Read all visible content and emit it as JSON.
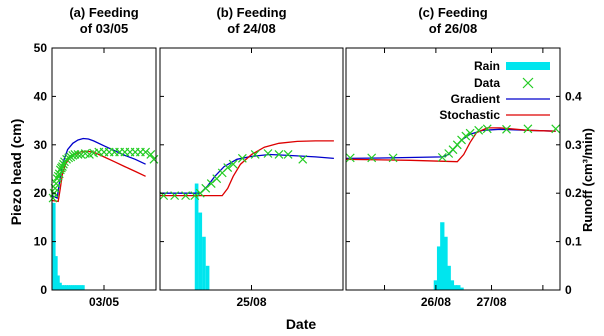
{
  "chart_data": {
    "type": "line",
    "xlabel": "Date",
    "ylabel": "Piezo head (cm)",
    "y2label": "Runoff (cm³/min)",
    "ylim": [
      0,
      50
    ],
    "y2lim": [
      0,
      0.5
    ],
    "yticks": [
      "0",
      "10",
      "20",
      "30",
      "40",
      "50"
    ],
    "y2ticks": [
      "0",
      "0.1",
      "0.2",
      "0.3",
      "0.4"
    ],
    "legend": {
      "placement": "top-right",
      "entries": [
        "Rain",
        "Data",
        "Gradient",
        "Stochastic"
      ]
    },
    "colors": {
      "rain": "#00e5ee",
      "data": "#22cc22",
      "gradient": "#0000cc",
      "stochastic": "#dd0000"
    },
    "panels": [
      {
        "title_line1": "(a) Feeding",
        "title_line2": "of 03/05",
        "xlim": [
          0,
          100
        ],
        "ticks": [
          {
            "x": 50,
            "label": "03/05"
          }
        ],
        "data": [
          [
            1,
            19
          ],
          [
            2,
            20
          ],
          [
            3,
            21
          ],
          [
            4,
            22
          ],
          [
            5,
            23
          ],
          [
            6,
            23.5
          ],
          [
            7,
            24
          ],
          [
            8,
            24.8
          ],
          [
            9,
            25.2
          ],
          [
            10,
            25.5
          ],
          [
            11,
            26
          ],
          [
            12,
            26.5
          ],
          [
            14,
            27
          ],
          [
            16,
            27.3
          ],
          [
            18,
            27.5
          ],
          [
            20,
            27.8
          ],
          [
            22,
            28
          ],
          [
            25,
            28
          ],
          [
            28,
            28
          ],
          [
            32,
            28.2
          ],
          [
            36,
            28
          ],
          [
            40,
            28.3
          ],
          [
            45,
            28.5
          ],
          [
            50,
            28.5
          ],
          [
            55,
            28.5
          ],
          [
            60,
            28.5
          ],
          [
            65,
            28.5
          ],
          [
            70,
            28.5
          ],
          [
            75,
            28.5
          ],
          [
            80,
            28.5
          ],
          [
            85,
            28.5
          ],
          [
            90,
            28.5
          ],
          [
            95,
            28
          ],
          [
            98,
            27
          ]
        ],
        "gradient": [
          [
            0,
            19.5
          ],
          [
            5,
            19
          ],
          [
            7,
            22
          ],
          [
            10,
            26
          ],
          [
            15,
            29
          ],
          [
            20,
            30.3
          ],
          [
            25,
            31
          ],
          [
            30,
            31.3
          ],
          [
            35,
            31.2
          ],
          [
            40,
            30.8
          ],
          [
            50,
            29.8
          ],
          [
            60,
            28.8
          ],
          [
            70,
            27.8
          ],
          [
            80,
            27
          ],
          [
            90,
            26
          ]
        ],
        "stochastic": [
          [
            0,
            18.5
          ],
          [
            6,
            18.3
          ],
          [
            8,
            21
          ],
          [
            10,
            24
          ],
          [
            13,
            26
          ],
          [
            17,
            27.3
          ],
          [
            22,
            28
          ],
          [
            27,
            28.5
          ],
          [
            32,
            28.7
          ],
          [
            40,
            28.5
          ],
          [
            50,
            27.5
          ],
          [
            60,
            26.5
          ],
          [
            70,
            25.5
          ],
          [
            80,
            24.5
          ],
          [
            90,
            23.5
          ]
        ],
        "rain": [
          [
            2,
            0.18
          ],
          [
            4,
            0.07
          ],
          [
            6,
            0.03
          ],
          [
            8,
            0.015
          ],
          [
            10,
            0.01
          ],
          [
            12,
            0.01
          ],
          [
            14,
            0.01
          ],
          [
            16,
            0.01
          ],
          [
            18,
            0.01
          ],
          [
            20,
            0.01
          ],
          [
            22,
            0.01
          ],
          [
            24,
            0.01
          ],
          [
            26,
            0.01
          ],
          [
            28,
            0.01
          ],
          [
            30,
            0.01
          ]
        ]
      },
      {
        "title_line1": "(b) Feeding",
        "title_line2": "of 24/08",
        "xlim": [
          0,
          100
        ],
        "ticks": [
          {
            "x": 50,
            "label": "25/08"
          }
        ],
        "data": [
          [
            2,
            19.5
          ],
          [
            8,
            19.5
          ],
          [
            14,
            19.5
          ],
          [
            19,
            19.5
          ],
          [
            22,
            20
          ],
          [
            25,
            21
          ],
          [
            28,
            22
          ],
          [
            31,
            23
          ],
          [
            34,
            24.2
          ],
          [
            37,
            25.3
          ],
          [
            40,
            26
          ],
          [
            45,
            27.2
          ],
          [
            52,
            28
          ],
          [
            59,
            28.2
          ],
          [
            65,
            28
          ],
          [
            70,
            28
          ],
          [
            78,
            27
          ]
        ],
        "gradient": [
          [
            0,
            20
          ],
          [
            22,
            20
          ],
          [
            26,
            21.5
          ],
          [
            30,
            23.5
          ],
          [
            35,
            25.5
          ],
          [
            42,
            27
          ],
          [
            50,
            27.6
          ],
          [
            60,
            28
          ],
          [
            70,
            27.8
          ],
          [
            85,
            27.5
          ],
          [
            95,
            27.2
          ]
        ],
        "stochastic": [
          [
            0,
            19.5
          ],
          [
            34,
            19.5
          ],
          [
            37,
            21
          ],
          [
            40,
            23.5
          ],
          [
            44,
            26
          ],
          [
            50,
            28
          ],
          [
            57,
            29.5
          ],
          [
            65,
            30.3
          ],
          [
            75,
            30.7
          ],
          [
            85,
            30.8
          ],
          [
            95,
            30.8
          ]
        ],
        "rain": [
          [
            20,
            0.22
          ],
          [
            22,
            0.16
          ],
          [
            24,
            0.11
          ],
          [
            26,
            0.05
          ]
        ]
      },
      {
        "title_line1": "(c) Feeding",
        "title_line2": "of 26/08",
        "xlim": [
          0,
          100
        ],
        "ticks": [
          {
            "x": 18,
            "label": ""
          },
          {
            "x": 42,
            "label": "26/08"
          },
          {
            "x": 68,
            "label": "27/08"
          },
          {
            "x": 92,
            "label": ""
          }
        ],
        "data": [
          [
            2,
            27.3
          ],
          [
            12,
            27.3
          ],
          [
            22,
            27.3
          ],
          [
            45,
            27.4
          ],
          [
            48,
            28.2
          ],
          [
            50,
            29
          ],
          [
            52,
            30
          ],
          [
            54,
            31
          ],
          [
            56,
            31.8
          ],
          [
            58,
            32.4
          ],
          [
            62,
            33
          ],
          [
            66,
            33.3
          ],
          [
            75,
            33.2
          ],
          [
            85,
            33.3
          ],
          [
            98,
            33.3
          ]
        ],
        "gradient": [
          [
            0,
            27.2
          ],
          [
            20,
            27.3
          ],
          [
            45,
            27.5
          ],
          [
            48,
            28
          ],
          [
            51,
            29.5
          ],
          [
            54,
            31
          ],
          [
            58,
            32.2
          ],
          [
            64,
            33
          ],
          [
            72,
            33.2
          ],
          [
            85,
            33
          ],
          [
            98,
            32.8
          ]
        ],
        "stochastic": [
          [
            0,
            27
          ],
          [
            30,
            26.8
          ],
          [
            52,
            26.5
          ],
          [
            55,
            28
          ],
          [
            58,
            30.5
          ],
          [
            61,
            32.5
          ],
          [
            66,
            33.5
          ],
          [
            72,
            33.5
          ],
          [
            85,
            33
          ],
          [
            98,
            32.8
          ]
        ],
        "rain": [
          [
            42,
            0.02
          ],
          [
            43.5,
            0.09
          ],
          [
            45,
            0.14
          ],
          [
            46.5,
            0.11
          ],
          [
            48,
            0.05
          ],
          [
            49.5,
            0.02
          ],
          [
            51,
            0.01
          ],
          [
            52.5,
            0.01
          ],
          [
            54,
            0.005
          ]
        ]
      }
    ]
  }
}
